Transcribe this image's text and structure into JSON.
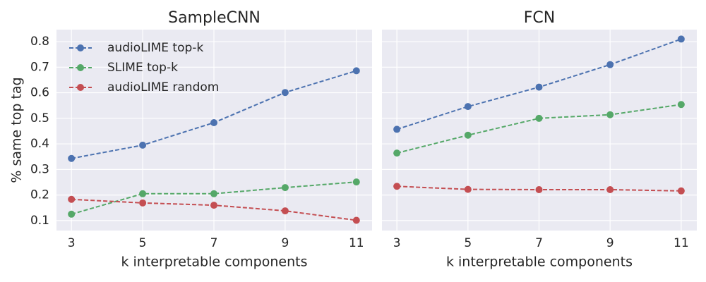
{
  "chart_data": [
    {
      "type": "line",
      "title": "SampleCNN",
      "x_label": "k interpretable components",
      "y_label": "% same top tag",
      "x": [
        3,
        5,
        7,
        9,
        11
      ],
      "series": [
        {
          "name": "audioLIME top-k",
          "color": "#4c72b0",
          "values": [
            0.343,
            0.395,
            0.483,
            0.601,
            0.686
          ]
        },
        {
          "name": "SLIME top-k",
          "color": "#55a868",
          "values": [
            0.125,
            0.205,
            0.205,
            0.229,
            0.251
          ]
        },
        {
          "name": "audioLIME random",
          "color": "#c44e52",
          "values": [
            0.183,
            0.169,
            0.16,
            0.138,
            0.101
          ]
        }
      ],
      "xlim": [
        2.58,
        11.44
      ],
      "ylim": [
        0.061,
        0.847
      ],
      "xticks": [
        3,
        5,
        7,
        9,
        11
      ],
      "yticks": [
        0.1,
        0.2,
        0.3,
        0.4,
        0.5,
        0.6,
        0.7,
        0.8
      ],
      "grid": true,
      "legend": "upper left"
    },
    {
      "type": "line",
      "title": "FCN",
      "x_label": "k interpretable components",
      "x": [
        3,
        5,
        7,
        9,
        11
      ],
      "series": [
        {
          "color": "#4c72b0",
          "values": [
            0.457,
            0.546,
            0.622,
            0.71,
            0.81
          ]
        },
        {
          "color": "#55a868",
          "values": [
            0.364,
            0.434,
            0.5,
            0.514,
            0.554
          ]
        },
        {
          "color": "#c44e52",
          "values": [
            0.234,
            0.222,
            0.221,
            0.221,
            0.216
          ]
        }
      ],
      "xlim": [
        2.58,
        11.44
      ],
      "ylim": [
        0.061,
        0.847
      ],
      "xticks": [
        3,
        5,
        7,
        9,
        11
      ],
      "yticks": [
        0.1,
        0.2,
        0.3,
        0.4,
        0.5,
        0.6,
        0.7,
        0.8
      ],
      "grid": true
    }
  ]
}
